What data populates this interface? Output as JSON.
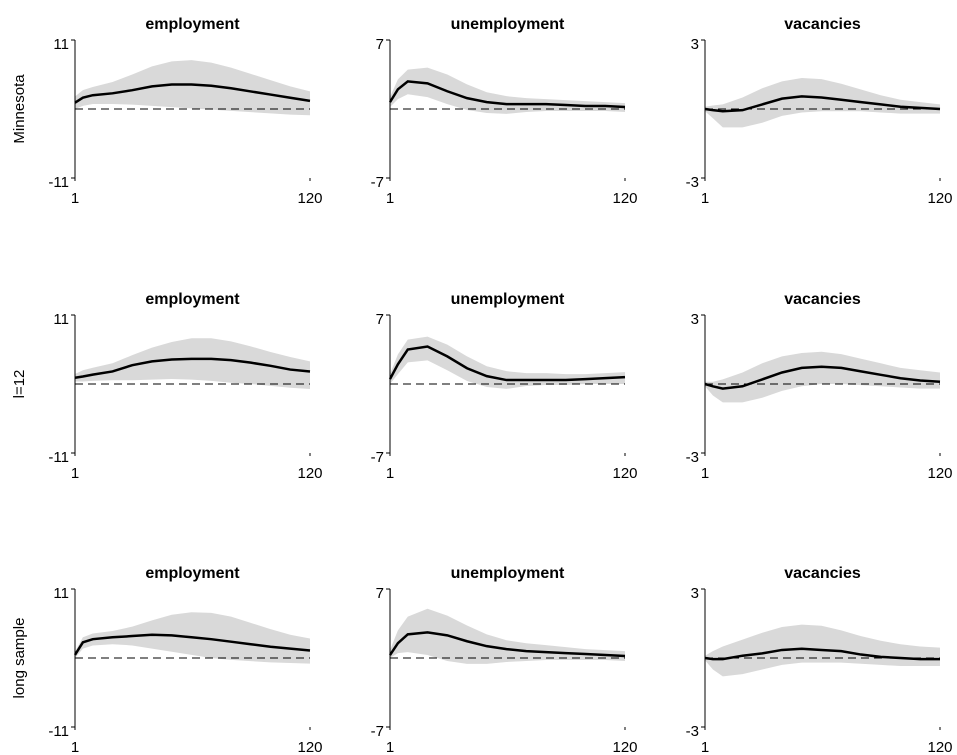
{
  "chart_data": [
    {
      "type": "line",
      "title": "employment",
      "ylabel": "Minnesota",
      "x": [
        1,
        5,
        10,
        20,
        30,
        40,
        50,
        60,
        70,
        80,
        90,
        100,
        110,
        120
      ],
      "values": [
        1.0,
        1.8,
        2.2,
        2.5,
        3.0,
        3.6,
        3.9,
        3.9,
        3.7,
        3.3,
        2.8,
        2.3,
        1.8,
        1.3
      ],
      "upper": [
        2.0,
        3.0,
        3.5,
        4.3,
        5.5,
        6.8,
        7.6,
        7.8,
        7.4,
        6.6,
        5.6,
        4.6,
        3.6,
        2.8
      ],
      "lower": [
        0.0,
        0.5,
        0.8,
        0.8,
        0.7,
        0.5,
        0.3,
        0.1,
        -0.1,
        -0.3,
        -0.5,
        -0.7,
        -0.9,
        -1.0
      ],
      "color": "#000000",
      "band_color": "#d9d9d9",
      "hline": 0,
      "xlim": [
        1,
        120
      ],
      "xticks": [
        1,
        120
      ],
      "ylim": [
        -11,
        11
      ],
      "yticks": [
        -11,
        11
      ]
    },
    {
      "type": "line",
      "title": "unemployment",
      "x": [
        1,
        5,
        10,
        20,
        30,
        40,
        50,
        60,
        70,
        80,
        90,
        100,
        110,
        120
      ],
      "values": [
        0.7,
        2.0,
        2.8,
        2.6,
        1.8,
        1.1,
        0.7,
        0.5,
        0.5,
        0.5,
        0.4,
        0.3,
        0.3,
        0.2
      ],
      "upper": [
        1.2,
        3.0,
        4.0,
        4.2,
        3.5,
        2.5,
        1.7,
        1.3,
        1.1,
        1.0,
        0.9,
        0.8,
        0.7,
        0.6
      ],
      "lower": [
        0.2,
        1.0,
        1.5,
        1.2,
        0.5,
        -0.1,
        -0.4,
        -0.5,
        -0.3,
        -0.2,
        -0.2,
        -0.2,
        -0.2,
        -0.3
      ],
      "color": "#000000",
      "band_color": "#d9d9d9",
      "hline": 0,
      "xlim": [
        1,
        120
      ],
      "xticks": [
        1,
        120
      ],
      "ylim": [
        -7,
        7
      ],
      "yticks": [
        -7,
        7
      ]
    },
    {
      "type": "line",
      "title": "vacancies",
      "x": [
        1,
        5,
        10,
        20,
        30,
        40,
        50,
        60,
        70,
        80,
        90,
        100,
        110,
        120
      ],
      "values": [
        0.0,
        -0.05,
        -0.1,
        -0.05,
        0.2,
        0.45,
        0.55,
        0.5,
        0.4,
        0.3,
        0.2,
        0.1,
        0.05,
        0.0
      ],
      "upper": [
        0.1,
        0.15,
        0.2,
        0.5,
        0.9,
        1.2,
        1.35,
        1.3,
        1.1,
        0.85,
        0.6,
        0.4,
        0.3,
        0.2
      ],
      "lower": [
        -0.1,
        -0.4,
        -0.8,
        -0.8,
        -0.6,
        -0.3,
        -0.15,
        -0.1,
        -0.1,
        -0.1,
        -0.15,
        -0.2,
        -0.2,
        -0.2
      ],
      "color": "#000000",
      "band_color": "#d9d9d9",
      "hline": 0,
      "xlim": [
        1,
        120
      ],
      "xticks": [
        1,
        120
      ],
      "ylim": [
        -3,
        3
      ],
      "yticks": [
        -3,
        3
      ]
    },
    {
      "type": "line",
      "title": "employment",
      "ylabel": "l=12",
      "x": [
        1,
        5,
        10,
        20,
        30,
        40,
        50,
        60,
        70,
        80,
        90,
        100,
        110,
        120
      ],
      "values": [
        1.0,
        1.2,
        1.5,
        2.0,
        3.0,
        3.6,
        3.9,
        4.0,
        4.0,
        3.8,
        3.4,
        2.9,
        2.3,
        2.0
      ],
      "upper": [
        1.6,
        2.2,
        2.6,
        3.3,
        4.6,
        5.8,
        6.7,
        7.3,
        7.3,
        6.8,
        6.0,
        5.1,
        4.3,
        3.6
      ],
      "lower": [
        0.4,
        0.4,
        0.5,
        0.6,
        0.6,
        0.7,
        0.8,
        0.7,
        0.5,
        0.2,
        0,
        -0.3,
        -0.6,
        -0.8
      ],
      "color": "#000000",
      "band_color": "#d9d9d9",
      "hline": 0,
      "xlim": [
        1,
        120
      ],
      "xticks": [
        1,
        120
      ],
      "ylim": [
        -11,
        11
      ],
      "yticks": [
        -11,
        11
      ]
    },
    {
      "type": "line",
      "title": "unemployment",
      "x": [
        1,
        5,
        10,
        20,
        30,
        40,
        50,
        60,
        70,
        80,
        90,
        100,
        110,
        120
      ],
      "values": [
        0.5,
        2.0,
        3.5,
        3.8,
        2.8,
        1.6,
        0.8,
        0.4,
        0.4,
        0.4,
        0.4,
        0.5,
        0.6,
        0.7
      ],
      "upper": [
        1,
        3,
        4.5,
        4.8,
        4.0,
        2.8,
        1.8,
        1.3,
        1.1,
        1.1,
        1.0,
        1.0,
        1.1,
        1.2
      ],
      "lower": [
        0,
        1,
        2.2,
        2.4,
        1.4,
        0.3,
        -0.3,
        -0.5,
        -0.2,
        -0.1,
        -0.1,
        0,
        0,
        0
      ],
      "color": "#000000",
      "band_color": "#d9d9d9",
      "hline": 0,
      "xlim": [
        1,
        120
      ],
      "xticks": [
        1,
        120
      ],
      "ylim": [
        -7,
        7
      ],
      "yticks": [
        -7,
        7
      ]
    },
    {
      "type": "line",
      "title": "vacancies",
      "x": [
        1,
        5,
        10,
        20,
        30,
        40,
        50,
        60,
        70,
        80,
        90,
        100,
        110,
        120
      ],
      "values": [
        0.0,
        -0.1,
        -0.2,
        -0.1,
        0.2,
        0.5,
        0.7,
        0.75,
        0.7,
        0.55,
        0.4,
        0.25,
        0.15,
        0.1
      ],
      "upper": [
        0.1,
        0.1,
        0.2,
        0.5,
        0.9,
        1.2,
        1.35,
        1.4,
        1.3,
        1.1,
        0.9,
        0.7,
        0.6,
        0.5
      ],
      "lower": [
        -0.1,
        -0.5,
        -0.8,
        -0.8,
        -0.6,
        -0.3,
        -0.1,
        0,
        0,
        -0.05,
        -0.1,
        -0.15,
        -0.2,
        -0.2
      ],
      "color": "#000000",
      "band_color": "#d9d9d9",
      "hline": 0,
      "xlim": [
        1,
        120
      ],
      "xticks": [
        1,
        120
      ],
      "ylim": [
        -3,
        3
      ],
      "yticks": [
        -3,
        3
      ]
    },
    {
      "type": "line",
      "title": "employment",
      "ylabel": "long sample",
      "x": [
        1,
        5,
        10,
        20,
        30,
        40,
        50,
        60,
        70,
        80,
        90,
        100,
        110,
        120
      ],
      "values": [
        0.5,
        2.5,
        3.0,
        3.3,
        3.5,
        3.7,
        3.6,
        3.3,
        3.0,
        2.6,
        2.2,
        1.8,
        1.5,
        1.2
      ],
      "upper": [
        1,
        3.3,
        3.9,
        4.3,
        5.0,
        6.0,
        6.9,
        7.3,
        7.2,
        6.6,
        5.6,
        4.6,
        3.7,
        3.1
      ],
      "lower": [
        0,
        1.5,
        2.0,
        2.2,
        2.0,
        1.5,
        1.0,
        0.5,
        0,
        -0.3,
        -0.5,
        -0.7,
        -0.8,
        -0.9
      ],
      "color": "#000000",
      "band_color": "#d9d9d9",
      "hline": 0,
      "xlim": [
        1,
        120
      ],
      "xticks": [
        1,
        120
      ],
      "ylim": [
        -11,
        11
      ],
      "yticks": [
        -11,
        11
      ]
    },
    {
      "type": "line",
      "title": "unemployment",
      "x": [
        1,
        5,
        10,
        20,
        30,
        40,
        50,
        60,
        70,
        80,
        90,
        100,
        110,
        120
      ],
      "values": [
        0.3,
        1.5,
        2.4,
        2.6,
        2.3,
        1.7,
        1.2,
        0.9,
        0.7,
        0.6,
        0.5,
        0.4,
        0.3,
        0.2
      ],
      "upper": [
        0.8,
        2.8,
        4.2,
        5.0,
        4.3,
        3.3,
        2.4,
        1.8,
        1.5,
        1.3,
        1.1,
        0.9,
        0.8,
        0.7
      ],
      "lower": [
        0,
        0.5,
        0.6,
        0.3,
        -0.3,
        -0.6,
        -0.6,
        -0.4,
        -0.3,
        -0.2,
        -0.2,
        -0.2,
        -0.2,
        -0.3
      ],
      "color": "#000000",
      "band_color": "#d9d9d9",
      "hline": 0,
      "xlim": [
        1,
        120
      ],
      "xticks": [
        1,
        120
      ],
      "ylim": [
        -7,
        7
      ],
      "yticks": [
        -7,
        7
      ]
    },
    {
      "type": "line",
      "title": "vacancies",
      "x": [
        1,
        5,
        10,
        20,
        30,
        40,
        50,
        60,
        70,
        80,
        90,
        100,
        110,
        120
      ],
      "values": [
        0.0,
        -0.05,
        -0.05,
        0.1,
        0.2,
        0.35,
        0.4,
        0.35,
        0.3,
        0.15,
        0.05,
        0,
        -0.05,
        -0.05
      ],
      "upper": [
        0.1,
        0.3,
        0.5,
        0.8,
        1.1,
        1.35,
        1.45,
        1.4,
        1.2,
        0.95,
        0.75,
        0.6,
        0.5,
        0.45
      ],
      "lower": [
        -0.1,
        -0.5,
        -0.8,
        -0.7,
        -0.5,
        -0.3,
        -0.2,
        -0.2,
        -0.2,
        -0.25,
        -0.3,
        -0.35,
        -0.35,
        -0.35
      ],
      "color": "#000000",
      "band_color": "#d9d9d9",
      "hline": 0,
      "xlim": [
        1,
        120
      ],
      "xticks": [
        1,
        120
      ],
      "ylim": [
        -3,
        3
      ],
      "yticks": [
        -3,
        3
      ]
    }
  ]
}
